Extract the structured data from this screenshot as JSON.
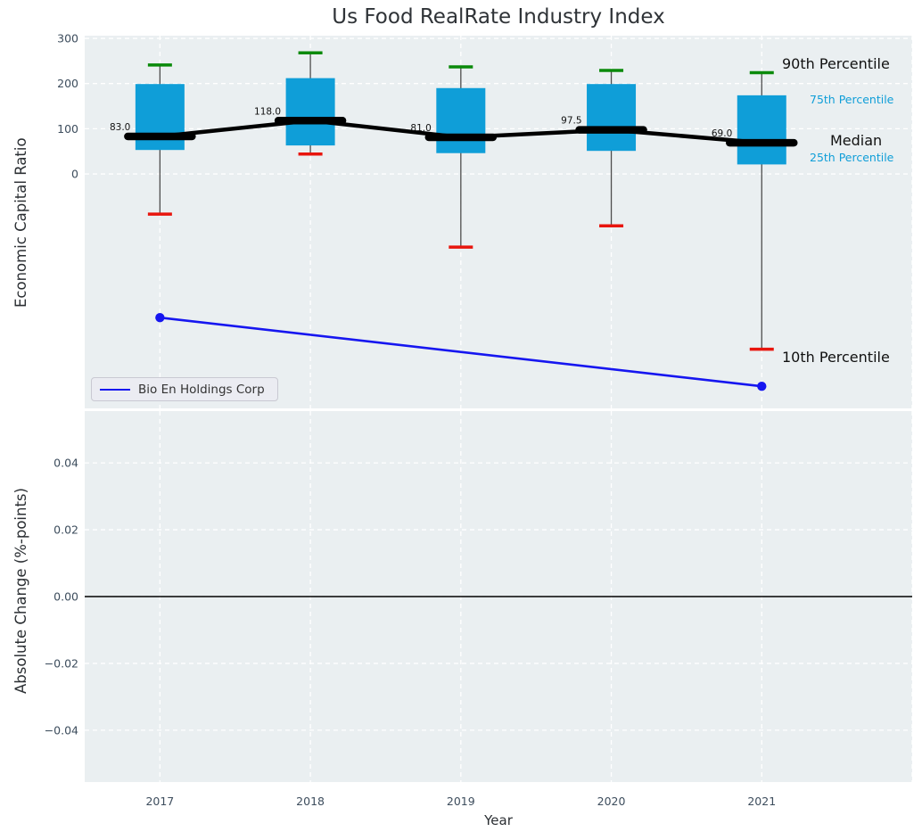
{
  "title": "Us Food RealRate Industry Index",
  "xlabel": "Year",
  "top_panel": {
    "ylabel": "Economic Capital Ratio",
    "legend_label": "Bio En Holdings Corp",
    "annotations": {
      "p90": "90th Percentile",
      "p75": "75th Percentile",
      "median": "Median",
      "p25": "25th Percentile",
      "p10": "10th Percentile"
    }
  },
  "bottom_panel": {
    "ylabel": "Absolute Change (%-points)"
  },
  "chart_data": [
    {
      "type": "boxplot",
      "panel": "top",
      "title": "Us Food RealRate Industry Index",
      "xlabel": "Year",
      "ylabel": "Economic Capital Ratio",
      "categories": [
        2017,
        2018,
        2019,
        2020,
        2021
      ],
      "xlim": [
        2016.5,
        2022.0
      ],
      "ylim": [
        -519,
        306
      ],
      "grid": true,
      "legend_position": "lower left",
      "yticks": [
        {
          "v": 300,
          "label": "300"
        },
        {
          "v": 200,
          "label": "200"
        },
        {
          "v": 100,
          "label": "100"
        },
        {
          "v": 0,
          "label": "0"
        }
      ],
      "boxes": [
        {
          "year": 2017,
          "p90": 241,
          "p75": 199,
          "median": 83.0,
          "p25": 53,
          "p10": -89,
          "median_label": "83.0"
        },
        {
          "year": 2018,
          "p90": 268,
          "p75": 212,
          "median": 118.0,
          "p25": 63,
          "p10": 44,
          "median_label": "118.0"
        },
        {
          "year": 2019,
          "p90": 237,
          "p75": 190,
          "median": 81.0,
          "p25": 46,
          "p10": -162,
          "median_label": "81.0"
        },
        {
          "year": 2020,
          "p90": 229,
          "p75": 199,
          "median": 97.5,
          "p25": 51,
          "p10": -115,
          "median_label": "97.5"
        },
        {
          "year": 2021,
          "p90": 224,
          "p75": 174,
          "median": 69.0,
          "p25": 21,
          "p10": -388,
          "median_label": "69.0"
        }
      ],
      "series": [
        {
          "name": "Bio En Holdings Corp",
          "x": [
            2017,
            2021
          ],
          "y": [
            -318,
            -470
          ],
          "color": "#1616f0"
        }
      ],
      "colors": {
        "box": "#0f9ed8",
        "median": "#000000",
        "median_trend": "#000000",
        "p90_cap": "#0a8a0a",
        "p10_cap": "#e8150d",
        "whisker": "#4d4d4d",
        "company_line": "#1616f0",
        "background": "#eaeff1",
        "grid": "#ffffff",
        "tick_text": "#3d4d5d",
        "annotation_blue": "#0f9ed8",
        "annotation_black": "#111111",
        "median_label_text": "#111111"
      }
    },
    {
      "type": "line",
      "panel": "bottom",
      "ylabel": "Absolute Change (%-points)",
      "xlabel": "Year",
      "categories": [
        2017,
        2018,
        2019,
        2020,
        2021
      ],
      "xlim": [
        2016.5,
        2022.0
      ],
      "ylim": [
        -0.0555,
        0.0555
      ],
      "grid": true,
      "zero_line": 0,
      "yticks": [
        {
          "v": 0.04,
          "label": "0.04"
        },
        {
          "v": 0.02,
          "label": "0.02"
        },
        {
          "v": 0,
          "label": "0.00"
        },
        {
          "v": -0.02,
          "label": "−0.02"
        },
        {
          "v": -0.04,
          "label": "−0.04"
        }
      ],
      "series": []
    }
  ]
}
